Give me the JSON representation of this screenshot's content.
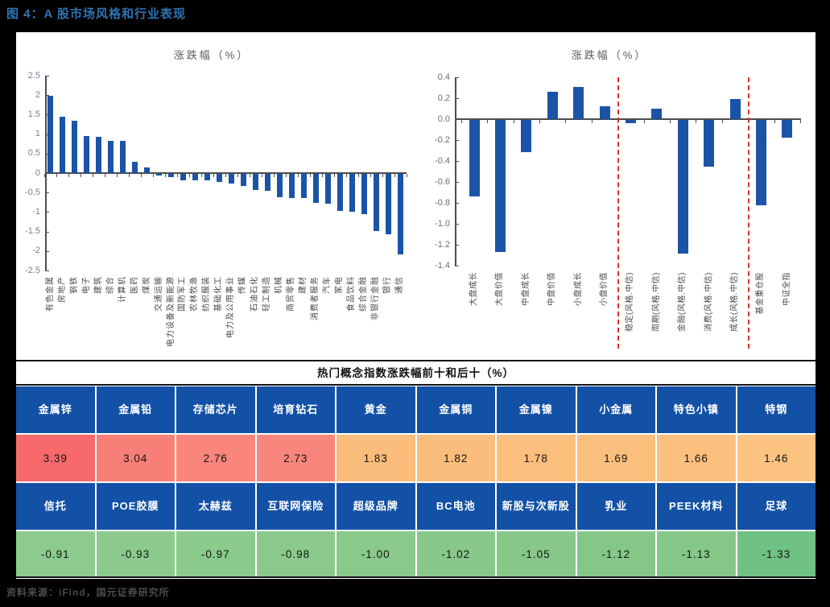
{
  "figure_title": "图 4：A 股市场风格和行业表现",
  "source_note": "资料来源：iFind，国元证券研究所",
  "colors": {
    "title_blue": "#2e74b5",
    "bar_blue": "#1b54a7",
    "table_header_blue": "#1351a6",
    "divider_red": "#e0302a",
    "axis_gray": "#4d4d4d"
  },
  "chart_data": [
    {
      "type": "bar",
      "title": "涨跌幅（%）",
      "ylabel": "涨跌幅（%）",
      "ylim": [
        -2.5,
        2.5
      ],
      "grid": false,
      "legend": "none",
      "bar_color": "#1b54a7",
      "yticks": [
        "2.5",
        "2",
        "1.5",
        "1",
        "0.5",
        "0",
        "-0.5",
        "-1",
        "-1.5",
        "-2",
        "-2.5"
      ],
      "categories": [
        "有色金属",
        "房地产",
        "钢铁",
        "电子",
        "建筑",
        "综合",
        "计算机",
        "医药",
        "煤炭",
        "交通运输",
        "电力设备及新能源",
        "国防军工",
        "农林牧渔",
        "纺织服装",
        "基础化工",
        "电力及公用事业",
        "传媒",
        "石油石化",
        "轻工制造",
        "机械",
        "商贸零售",
        "建材",
        "消费者服务",
        "汽车",
        "家电",
        "食品饮料",
        "综合金融",
        "非银行金融",
        "银行",
        "通信"
      ],
      "values": [
        1.98,
        1.45,
        1.35,
        0.95,
        0.92,
        0.83,
        0.83,
        0.28,
        0.15,
        -0.04,
        -0.08,
        -0.17,
        -0.18,
        -0.17,
        -0.22,
        -0.25,
        -0.32,
        -0.42,
        -0.44,
        -0.6,
        -0.62,
        -0.62,
        -0.74,
        -0.77,
        -0.95,
        -0.97,
        -1.03,
        -1.48,
        -1.55,
        -2.08
      ]
    },
    {
      "type": "bar",
      "title": "涨跌幅（%）",
      "ylabel": "涨跌幅（%）",
      "ylim": [
        -1.4,
        0.4
      ],
      "grid": false,
      "legend": "none",
      "bar_color": "#1b54a7",
      "yticks": [
        "0.4",
        "0.2",
        "0.0",
        "-0.2",
        "-0.4",
        "-0.6",
        "-0.8",
        "-1.0",
        "-1.2",
        "-1.4"
      ],
      "categories": [
        "大盘成长",
        "大盘价值",
        "中盘成长",
        "中盘价值",
        "小盘成长",
        "小盘价值",
        "稳定(风格.中信)",
        "周期(风格.中信)",
        "金融(风格.中信)",
        "消费(风格.中信)",
        "成长(风格.中信)",
        "基金重仓股",
        "中证全指"
      ],
      "values": [
        -0.73,
        -1.26,
        -0.31,
        0.26,
        0.31,
        0.12,
        -0.03,
        0.1,
        -1.28,
        -0.45,
        0.19,
        -0.82,
        -0.17
      ],
      "dividers_after": [
        5,
        10
      ]
    }
  ],
  "concept_table": {
    "title": "热门概念指数涨跌幅前十和后十（%）",
    "top10": {
      "names": [
        "金属锌",
        "金属铅",
        "存储芯片",
        "培育钻石",
        "黄金",
        "金属铜",
        "金属镍",
        "小金属",
        "特色小镇",
        "特钢"
      ],
      "values": [
        "3.39",
        "3.04",
        "2.76",
        "2.73",
        "1.83",
        "1.82",
        "1.78",
        "1.69",
        "1.66",
        "1.46"
      ],
      "value_colors": [
        "#f8696b",
        "#f87f77",
        "#f9857b",
        "#f9867c",
        "#fbbd7b",
        "#fbbd7b",
        "#fbbe7c",
        "#fbbf7d",
        "#fbc07e",
        "#fcc381"
      ]
    },
    "bottom10": {
      "names": [
        "信托",
        "POE胶膜",
        "太赫兹",
        "互联网保险",
        "超级品牌",
        "BC电池",
        "新股与次新股",
        "乳业",
        "PEEK材料",
        "足球"
      ],
      "values": [
        "-0.91",
        "-0.93",
        "-0.97",
        "-0.98",
        "-1.00",
        "-1.02",
        "-1.05",
        "-1.12",
        "-1.13",
        "-1.33"
      ],
      "value_colors": [
        "#8ccb8d",
        "#8bca8c",
        "#8aca8b",
        "#8ac98b",
        "#89c98a",
        "#88c88a",
        "#87c889",
        "#85c787",
        "#85c787",
        "#70c184"
      ]
    }
  }
}
